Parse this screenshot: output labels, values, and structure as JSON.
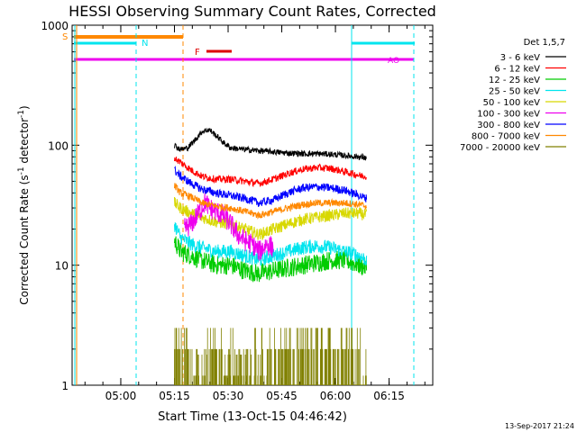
{
  "chart_data": {
    "type": "line",
    "title": "HESSI Observing Summary Count Rates, Corrected",
    "xlabel": "Start Time (13-Oct-15 04:46:42)",
    "ylabel_main": "Corrected Count Rate (s",
    "ylabel_sup1": "-1",
    "ylabel_mid": " detector",
    "ylabel_sup2": "-1",
    "ylabel_end": ")",
    "y_scale": "log",
    "ylim": [
      1,
      1000
    ],
    "xlim_minutes": [
      -0.3,
      100.5
    ],
    "x_ticks": [
      {
        "t": 13.3,
        "label": "05:00"
      },
      {
        "t": 28.3,
        "label": "05:15"
      },
      {
        "t": 43.3,
        "label": "05:30"
      },
      {
        "t": 58.3,
        "label": "05:45"
      },
      {
        "t": 73.3,
        "label": "06:00"
      },
      {
        "t": 88.3,
        "label": "06:15"
      }
    ],
    "y_ticks": [
      {
        "v": 1,
        "label": "1"
      },
      {
        "v": 10,
        "label": "10"
      },
      {
        "v": 100,
        "label": "100"
      },
      {
        "v": 1000,
        "label": "1000"
      }
    ],
    "legend_title": "Det 1,5,7",
    "legend_placement": "right",
    "series": [
      {
        "name": "3 - 6 keV",
        "color": "#000000",
        "values": [
          [
            28.3,
            100
          ],
          [
            30,
            92
          ],
          [
            32,
            95
          ],
          [
            34,
            110
          ],
          [
            36,
            130
          ],
          [
            38,
            135
          ],
          [
            40,
            120
          ],
          [
            42,
            105
          ],
          [
            44,
            95
          ],
          [
            48,
            92
          ],
          [
            52,
            90
          ],
          [
            56,
            88
          ],
          [
            60,
            86
          ],
          [
            64,
            85
          ],
          [
            68,
            85
          ],
          [
            72,
            84
          ],
          [
            76,
            82
          ],
          [
            80,
            80
          ],
          [
            82,
            78
          ]
        ]
      },
      {
        "name": "6 - 12 keV",
        "color": "#ff0000",
        "values": [
          [
            28.3,
            78
          ],
          [
            30,
            72
          ],
          [
            33,
            62
          ],
          [
            36,
            55
          ],
          [
            40,
            52
          ],
          [
            44,
            52
          ],
          [
            48,
            50
          ],
          [
            52,
            48
          ],
          [
            56,
            52
          ],
          [
            60,
            58
          ],
          [
            64,
            63
          ],
          [
            68,
            65
          ],
          [
            72,
            64
          ],
          [
            76,
            60
          ],
          [
            80,
            56
          ],
          [
            82,
            55
          ]
        ]
      },
      {
        "name": "12 - 25 keV",
        "color": "#00cc00",
        "values": [
          [
            28.3,
            16
          ],
          [
            30,
            13
          ],
          [
            33,
            12
          ],
          [
            36,
            11
          ],
          [
            40,
            10
          ],
          [
            44,
            10
          ],
          [
            48,
            9
          ],
          [
            52,
            8.5
          ],
          [
            56,
            9
          ],
          [
            60,
            9.5
          ],
          [
            64,
            10
          ],
          [
            68,
            10.5
          ],
          [
            72,
            11
          ],
          [
            76,
            11
          ],
          [
            80,
            10
          ],
          [
            82,
            9.5
          ]
        ]
      },
      {
        "name": "25 - 50 keV",
        "color": "#00e5ee",
        "values": [
          [
            28.3,
            22
          ],
          [
            30,
            17
          ],
          [
            33,
            15
          ],
          [
            36,
            14
          ],
          [
            40,
            13
          ],
          [
            44,
            13
          ],
          [
            48,
            12
          ],
          [
            52,
            11
          ],
          [
            56,
            12
          ],
          [
            60,
            13
          ],
          [
            64,
            14
          ],
          [
            68,
            14.5
          ],
          [
            72,
            14
          ],
          [
            76,
            13
          ],
          [
            80,
            12
          ],
          [
            82,
            11
          ]
        ]
      },
      {
        "name": "50 - 100 keV",
        "color": "#d8d800",
        "values": [
          [
            28.3,
            33
          ],
          [
            30,
            30
          ],
          [
            33,
            27
          ],
          [
            36,
            25
          ],
          [
            40,
            23
          ],
          [
            44,
            22
          ],
          [
            48,
            20
          ],
          [
            52,
            18
          ],
          [
            56,
            20
          ],
          [
            60,
            22
          ],
          [
            64,
            24
          ],
          [
            68,
            25
          ],
          [
            72,
            26
          ],
          [
            76,
            27
          ],
          [
            80,
            27
          ],
          [
            82,
            26
          ]
        ]
      },
      {
        "name": "100 - 300 keV",
        "color": "#ee00ee",
        "values": [
          [
            31,
            20
          ],
          [
            33,
            22
          ],
          [
            35,
            27
          ],
          [
            37,
            34
          ],
          [
            38,
            30
          ],
          [
            40,
            28
          ],
          [
            42,
            26
          ],
          [
            44,
            22
          ],
          [
            46,
            18
          ],
          [
            48,
            16
          ],
          [
            50,
            15
          ],
          [
            52,
            13
          ],
          [
            54,
            15
          ],
          [
            56,
            14
          ]
        ]
      },
      {
        "name": "300 - 800 keV",
        "color": "#0000ff",
        "values": [
          [
            28.3,
            62
          ],
          [
            30,
            55
          ],
          [
            33,
            48
          ],
          [
            36,
            43
          ],
          [
            40,
            40
          ],
          [
            44,
            38
          ],
          [
            48,
            36
          ],
          [
            52,
            33
          ],
          [
            56,
            35
          ],
          [
            60,
            40
          ],
          [
            64,
            44
          ],
          [
            68,
            45
          ],
          [
            72,
            44
          ],
          [
            76,
            42
          ],
          [
            80,
            38
          ],
          [
            82,
            36
          ]
        ]
      },
      {
        "name": "800 - 7000 keV",
        "color": "#ff8800",
        "values": [
          [
            28.3,
            46
          ],
          [
            30,
            40
          ],
          [
            33,
            37
          ],
          [
            36,
            33
          ],
          [
            40,
            31
          ],
          [
            44,
            30
          ],
          [
            48,
            28
          ],
          [
            52,
            26
          ],
          [
            56,
            28
          ],
          [
            60,
            30
          ],
          [
            64,
            32
          ],
          [
            68,
            33
          ],
          [
            72,
            33
          ],
          [
            76,
            33
          ],
          [
            80,
            32
          ],
          [
            82,
            31
          ]
        ]
      },
      {
        "name": "7000 - 20000 keV",
        "color": "#808000",
        "values": [
          [
            28.3,
            3
          ],
          [
            32,
            2
          ],
          [
            36,
            1.5
          ],
          [
            40,
            2
          ],
          [
            44,
            1.6
          ],
          [
            48,
            1.4
          ],
          [
            52,
            1.6
          ],
          [
            56,
            2
          ],
          [
            60,
            2
          ],
          [
            64,
            2
          ],
          [
            68,
            2
          ],
          [
            72,
            2
          ],
          [
            76,
            2
          ],
          [
            80,
            2
          ],
          [
            82,
            1.5
          ]
        ]
      }
    ],
    "annotations": [
      {
        "label": "S",
        "color": "#ff8800"
      },
      {
        "label": "N",
        "color": "#00e5ee"
      },
      {
        "label": "F",
        "color": "#dd0000"
      },
      {
        "label": "AO",
        "color": "#ee00ee"
      }
    ],
    "footer_date": "13-Sep-2017 21:24"
  }
}
